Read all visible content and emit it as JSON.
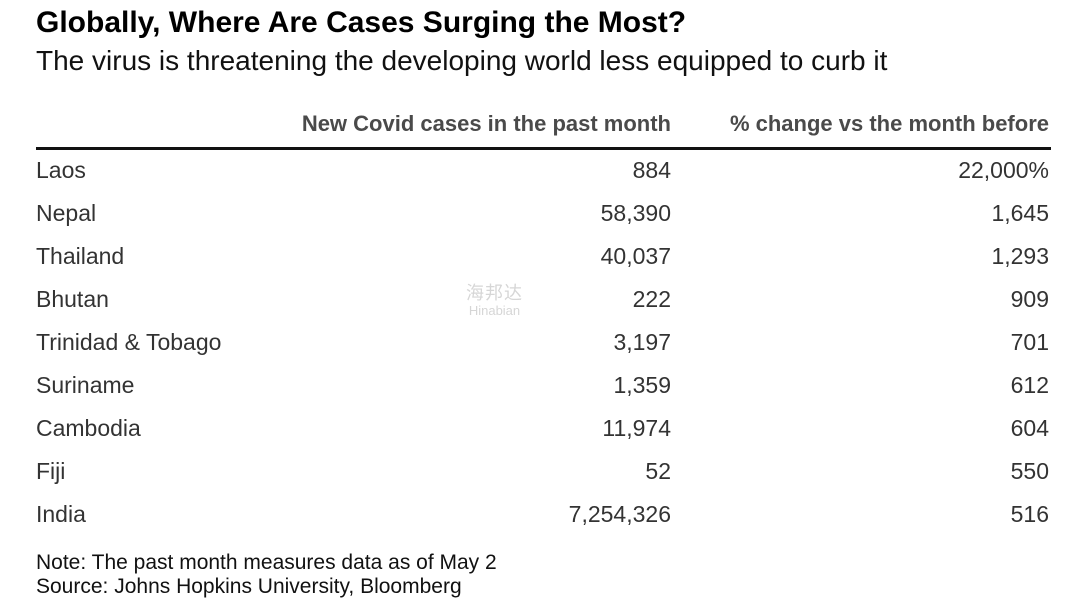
{
  "chart_data": {
    "type": "table",
    "title": "Globally, Where Are Cases Surging the Most?",
    "subtitle": "The virus is threatening the developing world less equipped to curb it",
    "columns": [
      "",
      "New Covid cases in the past month",
      "% change vs the month before"
    ],
    "rows": [
      {
        "country": "Laos",
        "new_cases": "884",
        "pct_change": "22,000%"
      },
      {
        "country": "Nepal",
        "new_cases": "58,390",
        "pct_change": "1,645"
      },
      {
        "country": "Thailand",
        "new_cases": "40,037",
        "pct_change": "1,293"
      },
      {
        "country": "Bhutan",
        "new_cases": "222",
        "pct_change": "909"
      },
      {
        "country": "Trinidad & Tobago",
        "new_cases": "3,197",
        "pct_change": "701"
      },
      {
        "country": "Suriname",
        "new_cases": "1,359",
        "pct_change": "612"
      },
      {
        "country": "Cambodia",
        "new_cases": "11,974",
        "pct_change": "604"
      },
      {
        "country": "Fiji",
        "new_cases": "52",
        "pct_change": "550"
      },
      {
        "country": "India",
        "new_cases": "7,254,326",
        "pct_change": "516"
      }
    ],
    "note": "Note: The past month measures data as of May 2",
    "source": "Source: Johns Hopkins University, Bloomberg"
  },
  "watermark": {
    "cn": "海邦达",
    "en": "Hinabian"
  }
}
